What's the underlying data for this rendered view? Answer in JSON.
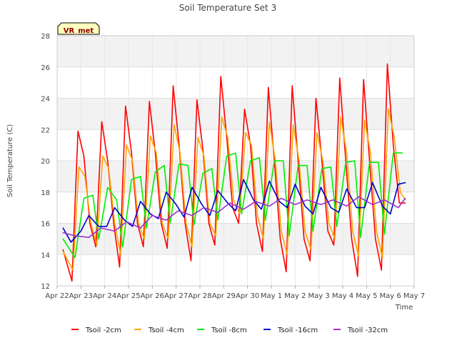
{
  "chart_data": {
    "type": "line",
    "title": "Soil Temperature Set 3",
    "xlabel": "Time",
    "ylabel": "Soil Temperature (C)",
    "ylim": [
      12,
      28
    ],
    "yticks": [
      12,
      14,
      16,
      18,
      20,
      22,
      24,
      26,
      28
    ],
    "xlim": [
      "2024-04-22",
      "2024-05-07"
    ],
    "xticks": [
      "Apr 22",
      "Apr 23",
      "Apr 24",
      "Apr 25",
      "Apr 26",
      "Apr 27",
      "Apr 28",
      "Apr 29",
      "Apr 30",
      "May 1",
      "May 2",
      "May 3",
      "May 4",
      "May 5",
      "May 6",
      "May 7"
    ],
    "grid": true,
    "background_bands": "alternating light gray",
    "legend_position": "bottom",
    "badge": "VR_met",
    "series": [
      {
        "name": "Tsoil -2cm",
        "color": "#ff0000",
        "x": [
          "Apr 22 06:00",
          "Apr 22 15:00",
          "Apr 22 21:00",
          "Apr 23 03:00",
          "Apr 23 09:00",
          "Apr 23 15:00",
          "Apr 23 21:00",
          "Apr 24 03:00",
          "Apr 24 09:00",
          "Apr 24 15:00",
          "Apr 24 21:00",
          "Apr 25 03:00",
          "Apr 25 09:00",
          "Apr 25 15:00",
          "Apr 25 21:00",
          "Apr 26 03:00",
          "Apr 26 09:00",
          "Apr 26 15:00",
          "Apr 26 21:00",
          "Apr 27 03:00",
          "Apr 27 09:00",
          "Apr 27 15:00",
          "Apr 27 21:00",
          "Apr 28 03:00",
          "Apr 28 09:00",
          "Apr 28 15:00",
          "Apr 28 21:00",
          "Apr 29 03:00",
          "Apr 29 09:00",
          "Apr 29 15:00",
          "Apr 29 21:00",
          "Apr 30 03:00",
          "Apr 30 09:00",
          "Apr 30 15:00",
          "Apr 30 21:00",
          "May 1 03:00",
          "May 1 09:00",
          "May 1 15:00",
          "May 1 21:00",
          "May 2 03:00",
          "May 2 09:00",
          "May 2 15:00",
          "May 2 21:00",
          "May 3 03:00",
          "May 3 09:00",
          "May 3 15:00",
          "May 3 21:00",
          "May 4 03:00",
          "May 4 09:00",
          "May 4 15:00",
          "May 4 21:00",
          "May 5 03:00",
          "May 5 09:00",
          "May 5 15:00",
          "May 5 21:00",
          "May 6 03:00",
          "May 6 09:00",
          "May 6 15:00"
        ],
        "values": [
          14.3,
          12.3,
          21.9,
          20.3,
          16.0,
          14.5,
          22.5,
          20.0,
          16.0,
          13.2,
          23.5,
          20.5,
          16.0,
          14.5,
          23.8,
          20.5,
          16.0,
          14.4,
          24.8,
          21.0,
          16.0,
          13.6,
          23.9,
          20.7,
          16.0,
          14.6,
          25.4,
          21.5,
          17.0,
          16.0,
          23.3,
          21.0,
          16.0,
          14.2,
          24.7,
          20.0,
          15.0,
          12.9,
          24.8,
          20.0,
          15.0,
          13.6,
          24.0,
          20.0,
          15.5,
          14.6,
          25.3,
          20.0,
          15.0,
          12.6,
          25.2,
          20.0,
          15.0,
          13.0,
          26.2,
          21.0,
          17.3,
          17.3
        ]
      },
      {
        "name": "Tsoil -4cm",
        "color": "#ffa500",
        "x": [
          "Apr 22 06:00",
          "Apr 22 16:00",
          "Apr 22 22:00",
          "Apr 23 04:00",
          "Apr 23 10:00",
          "Apr 23 16:00",
          "Apr 23 22:00",
          "Apr 24 04:00",
          "Apr 24 10:00",
          "Apr 24 16:00",
          "Apr 24 22:00",
          "Apr 25 04:00",
          "Apr 25 10:00",
          "Apr 25 16:00",
          "Apr 25 22:00",
          "Apr 26 04:00",
          "Apr 26 10:00",
          "Apr 26 16:00",
          "Apr 26 22:00",
          "Apr 27 04:00",
          "Apr 27 10:00",
          "Apr 27 16:00",
          "Apr 27 22:00",
          "Apr 28 04:00",
          "Apr 28 10:00",
          "Apr 28 16:00",
          "Apr 28 22:00",
          "Apr 29 04:00",
          "Apr 29 10:00",
          "Apr 29 16:00",
          "Apr 29 22:00",
          "Apr 30 04:00",
          "Apr 30 10:00",
          "Apr 30 16:00",
          "Apr 30 22:00",
          "May 1 04:00",
          "May 1 10:00",
          "May 1 16:00",
          "May 1 22:00",
          "May 2 04:00",
          "May 2 10:00",
          "May 2 16:00",
          "May 2 22:00",
          "May 3 04:00",
          "May 3 10:00",
          "May 3 16:00",
          "May 3 22:00",
          "May 4 04:00",
          "May 4 10:00",
          "May 4 16:00",
          "May 4 22:00",
          "May 5 04:00",
          "May 5 10:00",
          "May 5 16:00",
          "May 5 22:00",
          "May 6 04:00",
          "May 6 10:00",
          "May 6 15:00"
        ],
        "values": [
          14.2,
          13.0,
          19.6,
          19.0,
          16.0,
          14.6,
          20.3,
          19.5,
          16.0,
          14.0,
          21.0,
          20.0,
          16.0,
          15.0,
          21.6,
          20.5,
          16.0,
          15.0,
          22.3,
          20.5,
          16.0,
          14.5,
          21.5,
          20.3,
          16.0,
          15.2,
          22.8,
          21.5,
          17.5,
          16.6,
          21.8,
          21.0,
          16.5,
          15.0,
          22.5,
          20.0,
          15.5,
          14.0,
          22.3,
          20.0,
          15.5,
          14.3,
          21.8,
          20.0,
          16.0,
          15.0,
          22.8,
          20.5,
          15.5,
          13.9,
          22.6,
          20.5,
          15.5,
          13.8,
          23.3,
          21.5,
          18.0,
          17.5
        ]
      },
      {
        "name": "Tsoil -8cm",
        "color": "#00ee00",
        "x": [
          "Apr 22 06:00",
          "Apr 22 18:00",
          "Apr 23 03:00",
          "Apr 23 12:00",
          "Apr 23 18:00",
          "Apr 24 03:00",
          "Apr 24 12:00",
          "Apr 24 18:00",
          "Apr 25 03:00",
          "Apr 25 12:00",
          "Apr 25 18:00",
          "Apr 26 03:00",
          "Apr 26 12:00",
          "Apr 26 18:00",
          "Apr 27 03:00",
          "Apr 27 12:00",
          "Apr 27 18:00",
          "Apr 28 03:00",
          "Apr 28 12:00",
          "Apr 28 18:00",
          "Apr 29 03:00",
          "Apr 29 12:00",
          "Apr 29 18:00",
          "Apr 30 03:00",
          "Apr 30 12:00",
          "Apr 30 18:00",
          "May 1 03:00",
          "May 1 12:00",
          "May 1 18:00",
          "May 2 03:00",
          "May 2 12:00",
          "May 2 18:00",
          "May 3 03:00",
          "May 3 12:00",
          "May 3 18:00",
          "May 4 03:00",
          "May 4 12:00",
          "May 4 18:00",
          "May 5 03:00",
          "May 5 12:00",
          "May 5 18:00",
          "May 6 03:00",
          "May 6 12:00"
        ],
        "values": [
          15.0,
          13.8,
          17.6,
          17.8,
          15.0,
          18.3,
          17.5,
          14.5,
          18.8,
          19.0,
          15.7,
          19.3,
          19.7,
          16.0,
          19.8,
          19.7,
          15.9,
          19.2,
          19.5,
          16.2,
          20.3,
          20.5,
          16.6,
          20.0,
          20.2,
          16.2,
          20.0,
          20.0,
          15.2,
          19.7,
          19.7,
          15.5,
          19.5,
          19.6,
          15.8,
          19.9,
          20.0,
          15.1,
          19.9,
          19.9,
          15.3,
          20.5,
          20.5
        ]
      },
      {
        "name": "Tsoil -16cm",
        "color": "#0000cc",
        "x": [
          "Apr 22 06:00",
          "Apr 22 14:00",
          "Apr 23 00:00",
          "Apr 23 08:00",
          "Apr 23 18:00",
          "Apr 24 02:00",
          "Apr 24 10:00",
          "Apr 24 20:00",
          "Apr 25 04:00",
          "Apr 25 12:00",
          "Apr 25 22:00",
          "Apr 26 06:00",
          "Apr 26 14:00",
          "Apr 27 00:00",
          "Apr 27 08:00",
          "Apr 27 16:00",
          "Apr 28 02:00",
          "Apr 28 10:00",
          "Apr 28 18:00",
          "Apr 29 04:00",
          "Apr 29 12:00",
          "Apr 29 20:00",
          "Apr 30 06:00",
          "Apr 30 14:00",
          "Apr 30 22:00",
          "May 1 08:00",
          "May 1 16:00",
          "May 2 00:00",
          "May 2 10:00",
          "May 2 18:00",
          "May 3 02:00",
          "May 3 12:00",
          "May 3 20:00",
          "May 4 04:00",
          "May 4 14:00",
          "May 4 22:00",
          "May 5 06:00",
          "May 5 16:00",
          "May 6 00:00",
          "May 6 08:00",
          "May 6 15:00"
        ],
        "values": [
          15.7,
          14.8,
          15.5,
          16.5,
          15.8,
          15.8,
          17.0,
          16.2,
          15.8,
          17.4,
          16.6,
          16.3,
          18.0,
          17.2,
          16.4,
          18.3,
          17.2,
          16.5,
          18.1,
          17.3,
          16.8,
          18.8,
          17.5,
          16.9,
          18.7,
          17.4,
          17.0,
          18.5,
          17.1,
          16.6,
          18.3,
          17.0,
          16.7,
          18.2,
          17.0,
          17.0,
          18.6,
          17.1,
          16.6,
          18.5,
          18.6
        ]
      },
      {
        "name": "Tsoil -32cm",
        "color": "#9932cc",
        "x": [
          "Apr 22 06:00",
          "Apr 22 18:00",
          "Apr 23 08:00",
          "Apr 23 20:00",
          "Apr 24 10:00",
          "Apr 24 22:00",
          "Apr 25 12:00",
          "Apr 26 00:00",
          "Apr 26 14:00",
          "Apr 27 02:00",
          "Apr 27 16:00",
          "Apr 28 04:00",
          "Apr 28 18:00",
          "Apr 29 06:00",
          "Apr 29 20:00",
          "Apr 30 08:00",
          "Apr 30 22:00",
          "May 1 10:00",
          "May 2 00:00",
          "May 2 12:00",
          "May 3 02:00",
          "May 3 14:00",
          "May 4 04:00",
          "May 4 16:00",
          "May 5 06:00",
          "May 5 18:00",
          "May 6 08:00",
          "May 6 15:00"
        ],
        "values": [
          15.4,
          15.2,
          15.1,
          15.7,
          15.5,
          16.1,
          15.7,
          16.5,
          16.2,
          16.8,
          16.5,
          17.0,
          16.7,
          17.3,
          16.9,
          17.4,
          17.1,
          17.6,
          17.2,
          17.5,
          17.2,
          17.5,
          17.1,
          17.7,
          17.2,
          17.5,
          17.0,
          17.6
        ]
      }
    ]
  }
}
